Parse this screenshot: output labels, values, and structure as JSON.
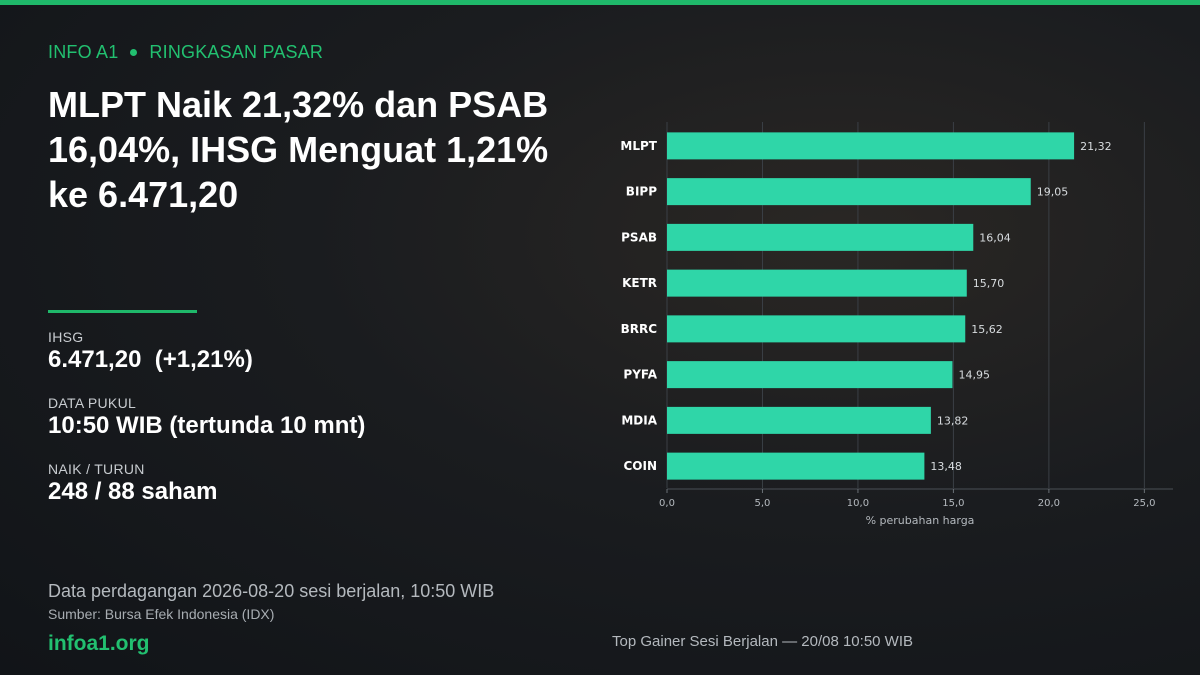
{
  "kicker": {
    "brand": "INFO A1",
    "section": "RINGKASAN PASAR"
  },
  "headline": "MLPT Naik 21,32% dan PSAB 16,04%, IHSG Menguat 1,21% ke 6.471,20",
  "stats": [
    {
      "label": "IHSG",
      "value": "6.471,20  (+1,21%)"
    },
    {
      "label": "DATA PUKUL",
      "value": "10:50 WIB (tertunda 10 mnt)"
    },
    {
      "label": "NAIK / TURUN",
      "value": "248 / 88 saham"
    }
  ],
  "footnote": "Data perdagangan 2026-08-20 sesi berjalan, 10:50 WIB",
  "source": "Sumber: Bursa Efek Indonesia (IDX)",
  "site": "infoa1.org",
  "chart_caption": "Top Gainer Sesi Berjalan — 20/08 10:50 WIB",
  "colors": {
    "accent": "#22c070",
    "bar": "#2fd6a8",
    "background": "#15181c"
  },
  "chart_data": {
    "type": "bar",
    "orientation": "horizontal",
    "categories": [
      "MLPT",
      "BIPP",
      "PSAB",
      "KETR",
      "BRRC",
      "PYFA",
      "MDIA",
      "COIN"
    ],
    "values": [
      21.32,
      19.05,
      16.04,
      15.7,
      15.62,
      14.95,
      13.82,
      13.48
    ],
    "value_labels": [
      "21,32",
      "19,05",
      "16,04",
      "15,70",
      "15,62",
      "14,95",
      "13,82",
      "13,48"
    ],
    "xlim": [
      0,
      26.5
    ],
    "xticks": [
      0,
      5,
      10,
      15,
      20,
      25
    ],
    "xtick_labels": [
      "0,0",
      "5,0",
      "10,0",
      "15,0",
      "20,0",
      "25,0"
    ],
    "xlabel": "% perubahan harga",
    "grid": "vertical",
    "legend": "none"
  }
}
